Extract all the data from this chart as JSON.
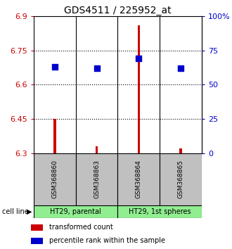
{
  "title": "GDS4511 / 225952_at",
  "samples": [
    "GSM368860",
    "GSM368863",
    "GSM368864",
    "GSM368865"
  ],
  "transformed_counts": [
    6.45,
    6.33,
    6.86,
    6.32
  ],
  "base_value": 6.3,
  "percentile_ranks": [
    63,
    62,
    69,
    62
  ],
  "ylim": [
    6.3,
    6.9
  ],
  "yticks": [
    6.3,
    6.45,
    6.6,
    6.75,
    6.9
  ],
  "ytick_labels": [
    "6.3",
    "6.45",
    "6.6",
    "6.75",
    "6.9"
  ],
  "right_yticks": [
    0,
    25,
    50,
    75,
    100
  ],
  "right_ytick_labels": [
    "0",
    "25",
    "50",
    "75",
    "100%"
  ],
  "cell_lines": [
    "HT29, parental",
    "HT29, 1st spheres"
  ],
  "cell_line_spans": [
    [
      0,
      2
    ],
    [
      2,
      4
    ]
  ],
  "bar_color": "#cc0000",
  "dot_color": "#0000cc",
  "bar_width": 0.06,
  "dot_size": 28,
  "sample_box_color": "#c0c0c0",
  "cell_line_color": "#90ee90",
  "legend_items": [
    "transformed count",
    "percentile rank within the sample"
  ],
  "hgrid_values": [
    6.45,
    6.6,
    6.75
  ],
  "left_color": "#cc0000",
  "right_color": "#0000cc"
}
